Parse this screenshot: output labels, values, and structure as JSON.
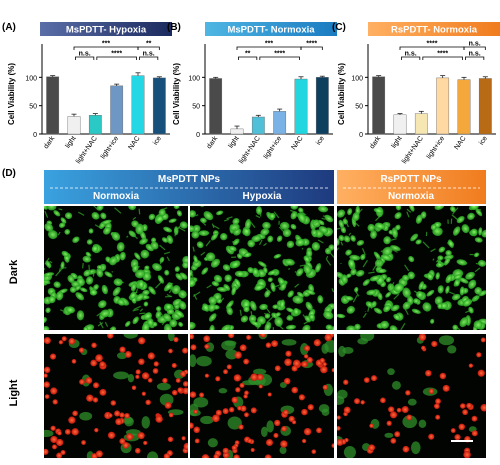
{
  "panels": [
    {
      "letter": "(A)",
      "title": "MsPDTT- Hypoxia",
      "title_colors": [
        "#5b6ea8",
        "#1b2a5e"
      ],
      "ylabel": "Cell Viability (%)",
      "significance": [
        {
          "label": "***",
          "from": 1,
          "to": 4
        },
        {
          "label": "**",
          "from": 4,
          "to": 5
        },
        {
          "label": "n.s.",
          "from": 1,
          "to": 2
        },
        {
          "label": "****",
          "from": 2,
          "to": 4
        },
        {
          "label": "n.s.",
          "from": 4,
          "to": 5
        }
      ]
    },
    {
      "letter": "(B)",
      "title": "MsPDTT- Normoxia",
      "title_colors": [
        "#4fb6e3",
        "#1a7bc0"
      ],
      "ylabel": "Cell Viability (%)",
      "significance": [
        {
          "label": "***",
          "from": 1,
          "to": 4
        },
        {
          "label": "****",
          "from": 4,
          "to": 5
        },
        {
          "label": "**",
          "from": 1,
          "to": 2
        },
        {
          "label": "****",
          "from": 2,
          "to": 4
        }
      ]
    },
    {
      "letter": "(C)",
      "title": "RsPDTT- Normoxia",
      "title_colors": [
        "#ffb062",
        "#f07c1e"
      ],
      "ylabel": "Cell Viability (%)",
      "significance": [
        {
          "label": "****",
          "from": 1,
          "to": 4
        },
        {
          "label": "n.s.",
          "from": 4,
          "to": 5
        },
        {
          "label": "n.s.",
          "from": 1,
          "to": 2
        },
        {
          "label": "****",
          "from": 2,
          "to": 4
        },
        {
          "label": "n.s.",
          "from": 4,
          "to": 5
        }
      ]
    }
  ],
  "chart_data": [
    {
      "type": "bar",
      "title": "MsPDTT- Hypoxia",
      "ylabel": "Cell Viability (%)",
      "categories": [
        "dark",
        "light",
        "light+NAC",
        "light+ice",
        "NAC",
        "ice"
      ],
      "values": [
        101,
        31,
        33,
        85,
        103,
        99
      ],
      "errors": [
        2,
        4,
        3,
        3,
        5,
        2
      ],
      "colors": [
        "#4a4a4a",
        "#f0f0f0",
        "#2bc9c5",
        "#6f97c4",
        "#23d8e4",
        "#17507a"
      ],
      "yticks": [
        0,
        50,
        100
      ],
      "ylim": [
        0,
        120
      ]
    },
    {
      "type": "bar",
      "title": "MsPDTT- Normoxia",
      "ylabel": "Cell Viability (%)",
      "categories": [
        "dark",
        "light",
        "light+NAC",
        "light+ice",
        "NAC",
        "ice"
      ],
      "values": [
        98,
        9,
        30,
        40,
        97,
        100
      ],
      "errors": [
        2,
        5,
        3,
        4,
        4,
        2
      ],
      "colors": [
        "#4a4a4a",
        "#f0f0f0",
        "#4fc0d8",
        "#7ab2e6",
        "#22d6e0",
        "#0d3f5f"
      ],
      "yticks": [
        0,
        50,
        100
      ],
      "ylim": [
        0,
        120
      ]
    },
    {
      "type": "bar",
      "title": "RsPDTT- Normoxia",
      "ylabel": "Cell Viability (%)",
      "categories": [
        "dark",
        "light",
        "light+NAC",
        "light+ice",
        "NAC",
        "ice"
      ],
      "values": [
        101,
        34,
        36,
        99,
        96,
        98
      ],
      "errors": [
        2,
        2,
        4,
        4,
        4,
        3
      ],
      "colors": [
        "#4a4a4a",
        "#f0f0f0",
        "#f6e6b2",
        "#ffd9a1",
        "#f4a83b",
        "#b86a14"
      ],
      "yticks": [
        0,
        50,
        100
      ],
      "ylim": [
        0,
        120
      ]
    }
  ],
  "panel_d": {
    "letter": "(D)",
    "groups": [
      {
        "title": "MsPDTT NPs",
        "subtitles": [
          "Normoxia",
          "Hypoxia"
        ],
        "colors": [
          "#3aa2e0",
          "#1e3a7e"
        ]
      },
      {
        "title": "RsPDTT NPs",
        "subtitles": [
          "Normoxia"
        ],
        "colors": [
          "#ffb062",
          "#f07c1e"
        ]
      }
    ],
    "row_labels": [
      "Dark",
      "Light"
    ]
  }
}
